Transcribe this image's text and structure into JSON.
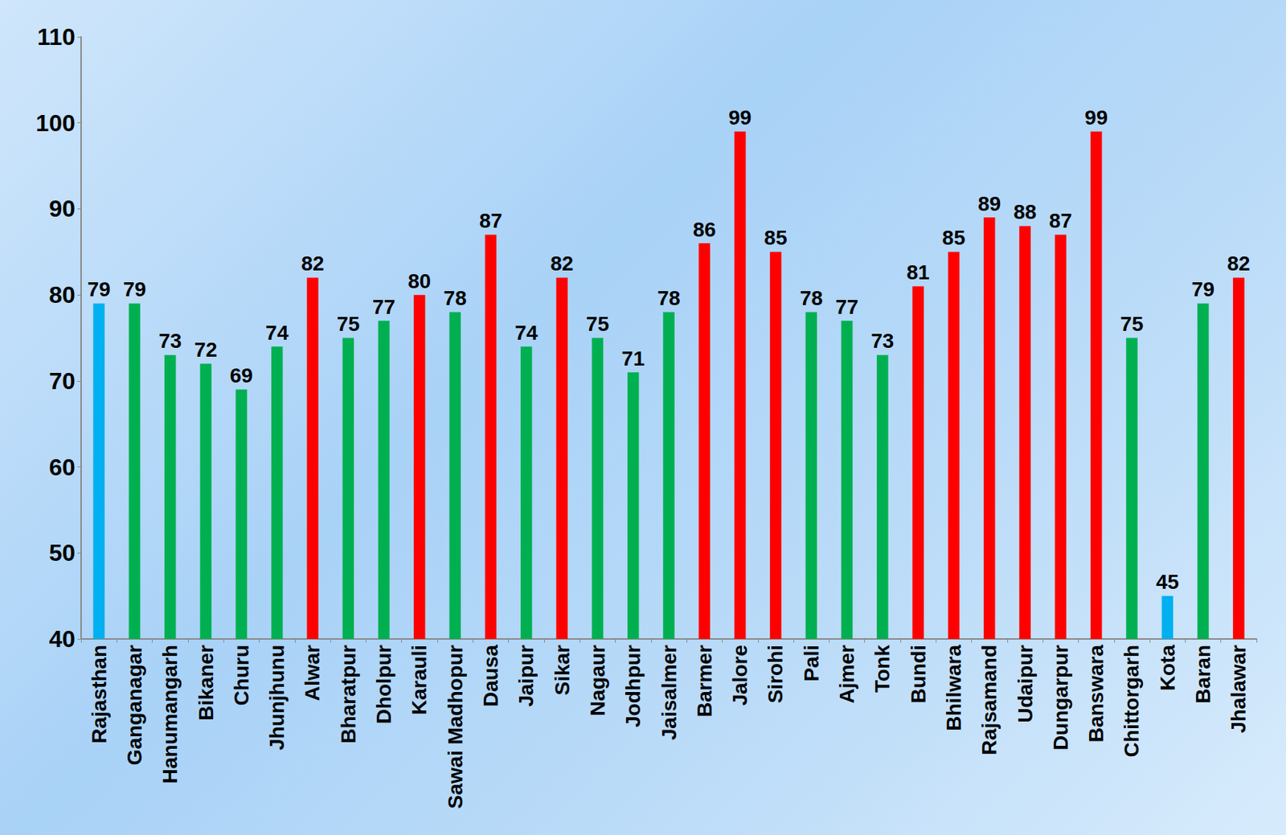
{
  "chart_data": {
    "type": "bar",
    "categories": [
      "Rajasthan",
      "Ganganagar",
      "Hanumangarh",
      "Bikaner",
      "Churu",
      "Jhunjhunu",
      "Alwar",
      "Bharatpur",
      "Dholpur",
      "Karauli",
      "Sawai Madhopur",
      "Dausa",
      "Jaipur",
      "Sikar",
      "Nagaur",
      "Jodhpur",
      "Jaisalmer",
      "Barmer",
      "Jalore",
      "Sirohi",
      "Pali",
      "Ajmer",
      "Tonk",
      "Bundi",
      "Bhilwara",
      "Rajsamand",
      "Udaipur",
      "Dungarpur",
      "Banswara",
      "Chittorgarh",
      "Kota",
      "Baran",
      "Jhalawar"
    ],
    "values": [
      79,
      79,
      73,
      72,
      69,
      74,
      82,
      75,
      77,
      80,
      78,
      87,
      74,
      82,
      75,
      71,
      78,
      86,
      99,
      85,
      78,
      77,
      73,
      81,
      85,
      89,
      88,
      87,
      99,
      75,
      45,
      79,
      82
    ],
    "colors": [
      "#00b0f0",
      "#00b050",
      "#00b050",
      "#00b050",
      "#00b050",
      "#00b050",
      "#ff0000",
      "#00b050",
      "#00b050",
      "#ff0000",
      "#00b050",
      "#ff0000",
      "#00b050",
      "#ff0000",
      "#00b050",
      "#00b050",
      "#00b050",
      "#ff0000",
      "#ff0000",
      "#ff0000",
      "#00b050",
      "#00b050",
      "#00b050",
      "#ff0000",
      "#ff0000",
      "#ff0000",
      "#ff0000",
      "#ff0000",
      "#ff0000",
      "#00b050",
      "#00b0f0",
      "#00b050",
      "#ff0000"
    ],
    "ylim": [
      40,
      110
    ],
    "yticks": [
      40,
      50,
      60,
      70,
      80,
      90,
      100,
      110
    ],
    "grid": false,
    "data_labels": true
  }
}
